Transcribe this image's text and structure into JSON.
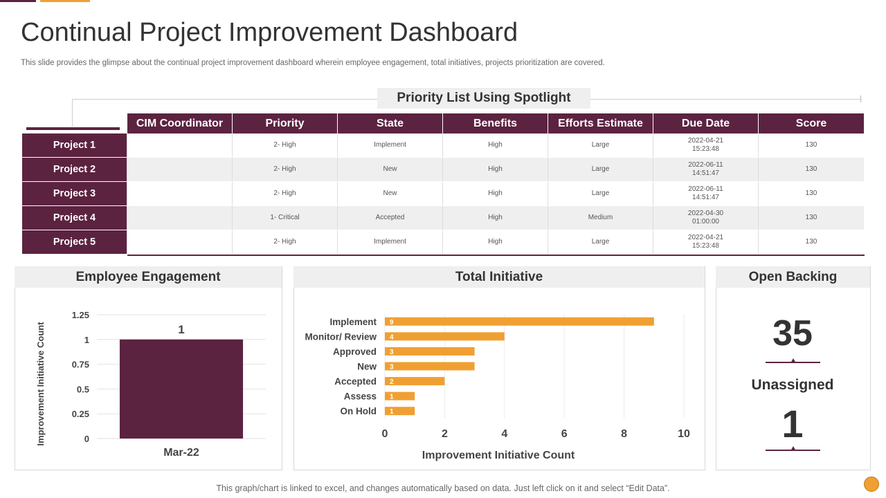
{
  "page": {
    "title": "Continual Project Improvement Dashboard",
    "subtitle": "This slide provides the glimpse about the continual project improvement dashboard wherein employee engagement, total initiatives, projects prioritization are covered.",
    "footer_note": "This graph/chart is linked to excel, and changes automatically based on data. Just left click on it and select “Edit Data”."
  },
  "colors": {
    "primary": "#5c2340",
    "accent": "#f0a032",
    "panel_head": "#f0efef"
  },
  "priority_list": {
    "heading": "Priority List Using Spotlight",
    "columns": [
      "CIM Coordinator",
      "Priority",
      "State",
      "Benefits",
      "Efforts  Estimate",
      "Due Date",
      "Score"
    ],
    "rows": [
      {
        "name": "Project 1",
        "coordinator": "",
        "priority": "2- High",
        "state": "Implement",
        "benefits": "High",
        "efforts": "Large",
        "due_date": "2022-04-21",
        "due_time": "15:23:48",
        "score": "130"
      },
      {
        "name": "Project 2",
        "coordinator": "",
        "priority": "2- High",
        "state": "New",
        "benefits": "High",
        "efforts": "Large",
        "due_date": "2022-06-11",
        "due_time": "14:51:47",
        "score": "130"
      },
      {
        "name": "Project 3",
        "coordinator": "",
        "priority": "2- High",
        "state": "New",
        "benefits": "High",
        "efforts": "Large",
        "due_date": "2022-06-11",
        "due_time": "14:51:47",
        "score": "130"
      },
      {
        "name": "Project 4",
        "coordinator": "",
        "priority": "1- Critical",
        "state": "Accepted",
        "benefits": "High",
        "efforts": "Medium",
        "due_date": "2022-04-30",
        "due_time": "01:00:00",
        "score": "130"
      },
      {
        "name": "Project 5",
        "coordinator": "",
        "priority": "2- High",
        "state": "Implement",
        "benefits": "High",
        "efforts": "Large",
        "due_date": "2022-04-21",
        "due_time": "15:23:48",
        "score": "130"
      }
    ]
  },
  "panels": {
    "employee_engagement": "Employee Engagement",
    "total_initiative": "Total Initiative",
    "open_backing": "Open Backing"
  },
  "open_backing": {
    "total": "35",
    "unassigned_label": "Unassigned",
    "unassigned": "1"
  },
  "chart_data": [
    {
      "type": "bar",
      "title": "Employee Engagement",
      "categories": [
        "Mar-22"
      ],
      "values": [
        1
      ],
      "data_labels": [
        "1"
      ],
      "xlabel": "",
      "ylabel": "Improvement Initiative Count",
      "ylim": [
        0,
        1.25
      ],
      "yticks": [
        0,
        0.25,
        0.5,
        0.75,
        1,
        1.25
      ],
      "ytick_labels": [
        "0",
        "0.25",
        "0.5",
        "0.75",
        "1",
        "1.25"
      ],
      "color": "#5c2340"
    },
    {
      "type": "bar",
      "orientation": "horizontal",
      "title": "Total Initiative",
      "categories": [
        "Implement",
        "Monitor/ Review",
        "Approved",
        "New",
        "Accepted",
        "Assess",
        "On Hold"
      ],
      "values": [
        9,
        4,
        3,
        3,
        2,
        1,
        1
      ],
      "data_labels": [
        "9",
        "4",
        "3",
        "3",
        "2",
        "1",
        "1"
      ],
      "xlabel": "Improvement Initiative Count",
      "ylabel": "",
      "xlim": [
        0,
        10
      ],
      "xticks": [
        0,
        2,
        4,
        6,
        8,
        10
      ],
      "xtick_labels": [
        "0",
        "2",
        "4",
        "6",
        "8",
        "10"
      ],
      "color": "#f0a032"
    }
  ]
}
